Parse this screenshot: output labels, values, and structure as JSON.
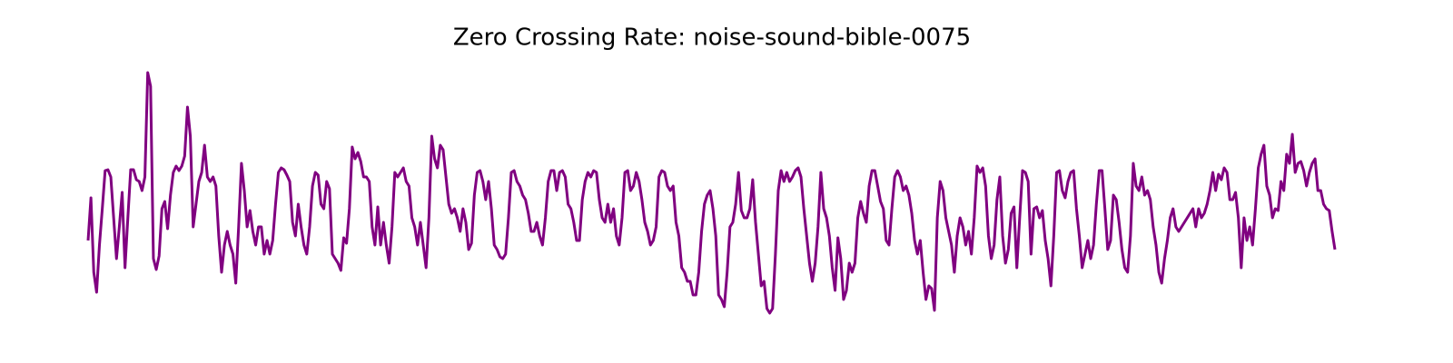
{
  "chart_data": {
    "type": "line",
    "title": "Zero Crossing Rate: noise-sound-bible-0075",
    "color": "#800080",
    "ylim": [
      0,
      0.3
    ],
    "values": [
      0.095,
      0.142,
      0.06,
      0.038,
      0.09,
      0.13,
      0.172,
      0.173,
      0.165,
      0.12,
      0.075,
      0.11,
      0.148,
      0.065,
      0.12,
      0.173,
      0.173,
      0.162,
      0.16,
      0.15,
      0.165,
      0.28,
      0.265,
      0.075,
      0.063,
      0.078,
      0.13,
      0.138,
      0.108,
      0.145,
      0.17,
      0.177,
      0.172,
      0.177,
      0.188,
      0.242,
      0.21,
      0.11,
      0.135,
      0.16,
      0.17,
      0.2,
      0.165,
      0.16,
      0.165,
      0.155,
      0.1,
      0.06,
      0.09,
      0.105,
      0.09,
      0.08,
      0.048,
      0.11,
      0.18,
      0.15,
      0.11,
      0.128,
      0.105,
      0.09,
      0.11,
      0.11,
      0.08,
      0.095,
      0.08,
      0.095,
      0.135,
      0.17,
      0.175,
      0.173,
      0.167,
      0.16,
      0.115,
      0.1,
      0.135,
      0.11,
      0.09,
      0.08,
      0.11,
      0.155,
      0.17,
      0.167,
      0.135,
      0.13,
      0.16,
      0.152,
      0.08,
      0.075,
      0.07,
      0.062,
      0.098,
      0.092,
      0.13,
      0.198,
      0.185,
      0.192,
      0.182,
      0.165,
      0.165,
      0.16,
      0.11,
      0.09,
      0.132,
      0.09,
      0.115,
      0.09,
      0.07,
      0.11,
      0.17,
      0.165,
      0.17,
      0.175,
      0.16,
      0.155,
      0.12,
      0.11,
      0.09,
      0.115,
      0.09,
      0.065,
      0.12,
      0.21,
      0.185,
      0.175,
      0.2,
      0.195,
      0.165,
      0.135,
      0.125,
      0.13,
      0.12,
      0.105,
      0.13,
      0.115,
      0.085,
      0.092,
      0.145,
      0.17,
      0.172,
      0.16,
      0.14,
      0.16,
      0.13,
      0.09,
      0.085,
      0.077,
      0.075,
      0.08,
      0.12,
      0.17,
      0.172,
      0.16,
      0.155,
      0.145,
      0.14,
      0.125,
      0.105,
      0.105,
      0.115,
      0.1,
      0.09,
      0.12,
      0.16,
      0.172,
      0.172,
      0.15,
      0.17,
      0.172,
      0.165,
      0.135,
      0.13,
      0.115,
      0.095,
      0.095,
      0.14,
      0.16,
      0.17,
      0.165,
      0.172,
      0.17,
      0.14,
      0.12,
      0.115,
      0.135,
      0.115,
      0.13,
      0.1,
      0.09,
      0.12,
      0.17,
      0.172,
      0.15,
      0.155,
      0.17,
      0.16,
      0.14,
      0.115,
      0.105,
      0.09,
      0.095,
      0.11,
      0.165,
      0.172,
      0.17,
      0.155,
      0.15,
      0.155,
      0.115,
      0.1,
      0.065,
      0.06,
      0.05,
      0.05,
      0.035,
      0.035,
      0.06,
      0.105,
      0.135,
      0.145,
      0.15,
      0.13,
      0.1,
      0.035,
      0.03,
      0.022,
      0.06,
      0.11,
      0.115,
      0.135,
      0.17,
      0.128,
      0.12,
      0.12,
      0.13,
      0.162,
      0.115,
      0.08,
      0.045,
      0.05,
      0.02,
      0.015,
      0.02,
      0.08,
      0.15,
      0.172,
      0.16,
      0.17,
      0.16,
      0.165,
      0.172,
      0.175,
      0.165,
      0.13,
      0.1,
      0.07,
      0.05,
      0.07,
      0.11,
      0.17,
      0.13,
      0.12,
      0.1,
      0.065,
      0.04,
      0.098,
      0.075,
      0.03,
      0.04,
      0.07,
      0.06,
      0.07,
      0.12,
      0.138,
      0.125,
      0.115,
      0.155,
      0.172,
      0.172,
      0.155,
      0.138,
      0.13,
      0.095,
      0.09,
      0.13,
      0.165,
      0.172,
      0.165,
      0.15,
      0.155,
      0.145,
      0.125,
      0.095,
      0.08,
      0.095,
      0.06,
      0.03,
      0.045,
      0.042,
      0.018,
      0.12,
      0.16,
      0.15,
      0.12,
      0.105,
      0.09,
      0.06,
      0.1,
      0.12,
      0.11,
      0.09,
      0.105,
      0.08,
      0.12,
      0.177,
      0.17,
      0.175,
      0.155,
      0.1,
      0.075,
      0.09,
      0.14,
      0.165,
      0.1,
      0.07,
      0.085,
      0.125,
      0.132,
      0.065,
      0.12,
      0.172,
      0.17,
      0.16,
      0.08,
      0.13,
      0.132,
      0.12,
      0.128,
      0.095,
      0.075,
      0.045,
      0.1,
      0.17,
      0.172,
      0.15,
      0.142,
      0.16,
      0.17,
      0.172,
      0.13,
      0.1,
      0.065,
      0.08,
      0.095,
      0.075,
      0.09,
      0.135,
      0.172,
      0.172,
      0.13,
      0.085,
      0.095,
      0.145,
      0.14,
      0.115,
      0.085,
      0.065,
      0.06,
      0.1,
      0.18,
      0.155,
      0.15,
      0.165,
      0.145,
      0.15,
      0.14,
      0.11,
      0.09,
      0.06,
      0.048,
      0.075,
      0.095,
      0.12,
      0.13,
      0.11,
      0.105,
      0.11,
      0.115,
      0.12,
      0.125,
      0.13,
      0.11,
      0.13,
      0.12,
      0.125,
      0.135,
      0.15,
      0.17,
      0.15,
      0.168,
      0.162,
      0.175,
      0.17,
      0.14,
      0.14,
      0.148,
      0.12,
      0.065,
      0.12,
      0.095,
      0.11,
      0.09,
      0.13,
      0.175,
      0.19,
      0.2,
      0.155,
      0.145,
      0.12,
      0.13,
      0.128,
      0.16,
      0.15,
      0.19,
      0.18,
      0.212,
      0.17,
      0.18,
      0.182,
      0.172,
      0.155,
      0.17,
      0.18,
      0.185,
      0.15,
      0.15,
      0.135,
      0.13,
      0.128,
      0.105,
      0.085
    ]
  }
}
